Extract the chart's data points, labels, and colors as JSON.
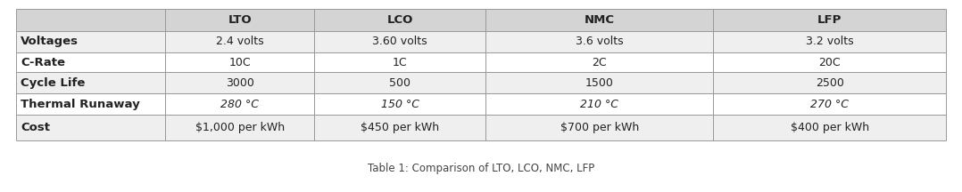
{
  "caption": "Table 1: Comparison of LTO, LCO, NMC, LFP",
  "col_headers": [
    "LTO",
    "LCO",
    "NMC",
    "LFP"
  ],
  "row_headers": [
    "Voltages",
    "C-Rate",
    "Cycle Life",
    "Thermal Runaway",
    "Cost"
  ],
  "rows": [
    [
      "2.4 volts",
      "3.60 volts",
      "3.6 volts",
      "3.2 volts"
    ],
    [
      "10C",
      "1C",
      "2C",
      "20C"
    ],
    [
      "3000",
      "500",
      "1500",
      "2500"
    ],
    [
      "280 °C",
      "150 °C",
      "210 °C",
      "270 °C"
    ],
    [
      "$1,000 per kWh",
      "$450 per kWh",
      "$700 per kWh",
      "$400 per kWh"
    ]
  ],
  "header_bg": "#d4d4d4",
  "data_row_bg_odd": "#efefef",
  "data_row_bg_even": "#ffffff",
  "border_color": "#999999",
  "fig_bg": "#ffffff",
  "caption_fontsize": 8.5,
  "header_fontsize": 9.5,
  "cell_fontsize": 9,
  "row_label_fontsize": 9.5
}
